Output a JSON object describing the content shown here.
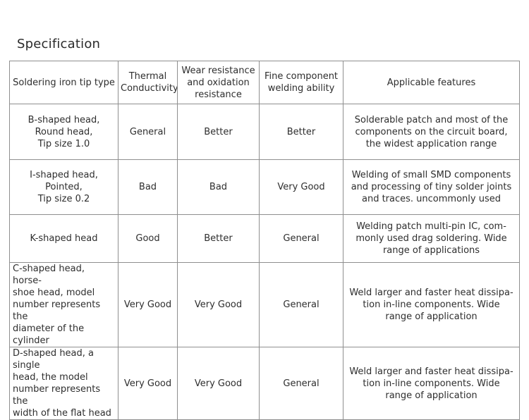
{
  "title": "Specification",
  "headers": [
    "Soldering iron tip type",
    "Thermal\nConductivity",
    "Wear resistance\nand oxidation\nresistance",
    "Fine component\nwelding ability",
    "Applicable features"
  ],
  "rows": [
    [
      "B-shaped head,\nRound head,\nTip size 1.0",
      "General",
      "Better",
      "Better",
      "Solderable patch and most of the\ncomponents on the circuit board,\nthe widest application range"
    ],
    [
      "I-shaped head,\nPointed,\nTip size 0.2",
      "Bad",
      "Bad",
      "Very Good",
      "Welding of small SMD components\nand processing of tiny solder joints\nand traces. uncommonly used"
    ],
    [
      "K-shaped head",
      "Good",
      "Better",
      "General",
      "Welding patch multi-pin IC, com-\nmonly used drag soldering. Wide\nrange of applications"
    ],
    [
      "C-shaped head, horse-\nshoe head, model\nnumber represents the\ndiameter of the cylinder",
      "Very Good",
      "Very Good",
      "General",
      "Weld larger and faster heat dissipa-\ntion in-line components. Wide\nrange of application"
    ],
    [
      "D-shaped head, a single\nhead, the model\nnumber represents the\nwidth of the flat head",
      "Very Good",
      "Very Good",
      "General",
      "Weld larger and faster heat dissipa-\ntion in-line components. Wide\nrange of application"
    ]
  ]
}
